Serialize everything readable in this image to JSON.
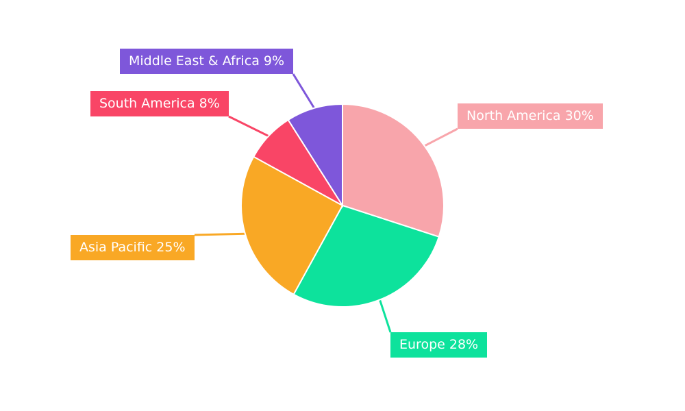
{
  "chart_data": {
    "type": "pie",
    "title": "",
    "legend_position": "callout-labels",
    "direction": "clockwise",
    "start_angle": "top",
    "background": "#ffffff",
    "label_text_color": "#ffffff",
    "categories": [
      "North America",
      "Europe",
      "Asia Pacific",
      "South America",
      "Middle East & Africa"
    ],
    "values": [
      30,
      28,
      25,
      8,
      9
    ],
    "slices": [
      {
        "label": "North America",
        "value": 30,
        "display": "North America 30%",
        "color": "#F8A5AB"
      },
      {
        "label": "Europe",
        "value": 28,
        "display": "Europe 28%",
        "color": "#0DE29C"
      },
      {
        "label": "Asia Pacific",
        "value": 25,
        "display": "Asia Pacific 25%",
        "color": "#F9A825"
      },
      {
        "label": "South America",
        "value": 8,
        "display": "South America 8%",
        "color": "#F94566"
      },
      {
        "label": "Middle East & Africa",
        "value": 9,
        "display": "Middle East & Africa 9%",
        "color": "#7E57DA"
      }
    ]
  }
}
